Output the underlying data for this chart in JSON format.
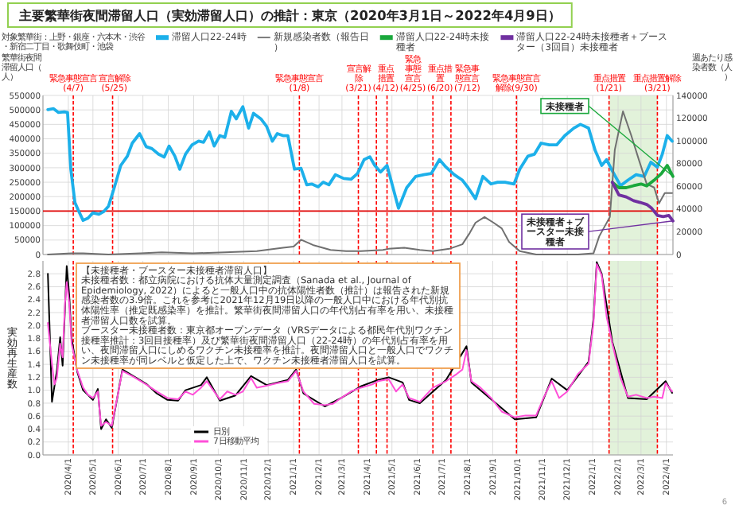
{
  "chart_data": [
    {
      "type": "line",
      "title": "主要繁華街夜間滞留人口（実効滞留人口）の推計：東京（2020年3月1日～2022年4月9日）",
      "ylabel": "繁華街夜間滞留人口（人）",
      "y2label": "週あたり感染者数（人）",
      "xlim": [
        "2020-03-01",
        "2022-04-09"
      ],
      "xticks": [
        {
          "value": "2020-04-01",
          "label": null
        },
        {
          "value": "2020-05-01",
          "label": null
        },
        {
          "value": "2020-06-01",
          "label": null
        },
        {
          "value": "2020-07-01",
          "label": null
        },
        {
          "value": "2020-08-01",
          "label": null
        },
        {
          "value": "2020-09-01",
          "label": null
        },
        {
          "value": "2020-10-01",
          "label": null
        },
        {
          "value": "2020-11-01",
          "label": null
        },
        {
          "value": "2020-12-01",
          "label": null
        },
        {
          "value": "2021-01-01",
          "label": null
        },
        {
          "value": "2021-02-01",
          "label": null
        },
        {
          "value": "2021-03-01",
          "label": null
        },
        {
          "value": "2021-04-01",
          "label": null
        },
        {
          "value": "2021-05-01",
          "label": null
        },
        {
          "value": "2021-06-01",
          "label": null
        },
        {
          "value": "2021-07-01",
          "label": null
        },
        {
          "value": "2021-08-01",
          "label": null
        },
        {
          "value": "2021-09-01",
          "label": null
        },
        {
          "value": "2021-10-01",
          "label": null
        },
        {
          "value": "2021-11-01",
          "label": null
        },
        {
          "value": "2021-12-01",
          "label": null
        },
        {
          "value": "2022-01-01",
          "label": null
        },
        {
          "value": "2022-02-01",
          "label": null
        },
        {
          "value": "2022-03-01",
          "label": null
        },
        {
          "value": "2022-04-01",
          "label": null
        }
      ],
      "ylim": [
        0,
        550000
      ],
      "yticks": [
        0,
        50000,
        100000,
        150000,
        200000,
        250000,
        300000,
        350000,
        400000,
        450000,
        500000,
        550000
      ],
      "y2lim": [
        0,
        140000
      ],
      "y2ticks": [
        0,
        20000,
        40000,
        60000,
        80000,
        100000,
        120000,
        140000
      ],
      "grid": true,
      "legend": "top",
      "tick_labels": "y",
      "series": [
        {
          "name": "滞留人口22-24時",
          "color": "#1cb0ea",
          "x": [
            "2020-03-07",
            "2020-03-14",
            "2020-03-20",
            "2020-03-27",
            "2020-03-31",
            "2020-04-04",
            "2020-04-09",
            "2020-04-13",
            "2020-04-19",
            "2020-04-25",
            "2020-05-01",
            "2020-05-08",
            "2020-05-14",
            "2020-05-20",
            "2020-05-27",
            "2020-06-04",
            "2020-06-12",
            "2020-06-18",
            "2020-06-27",
            "2020-07-05",
            "2020-07-12",
            "2020-07-20",
            "2020-07-27",
            "2020-08-02",
            "2020-08-09",
            "2020-08-15",
            "2020-08-22",
            "2020-08-30",
            "2020-09-07",
            "2020-09-13",
            "2020-09-20",
            "2020-09-26",
            "2020-10-03",
            "2020-10-09",
            "2020-10-17",
            "2020-10-23",
            "2020-10-31",
            "2020-11-07",
            "2020-11-13",
            "2020-11-22",
            "2020-11-29",
            "2020-12-06",
            "2020-12-12",
            "2020-12-19",
            "2020-12-25",
            "2021-01-02",
            "2021-01-10",
            "2021-01-17",
            "2021-01-23",
            "2021-01-31",
            "2021-02-06",
            "2021-02-13",
            "2021-02-21",
            "2021-03-03",
            "2021-03-12",
            "2021-03-20",
            "2021-03-28",
            "2021-04-04",
            "2021-04-10",
            "2021-04-17",
            "2021-04-25",
            "2021-05-09",
            "2021-05-19",
            "2021-05-30",
            "2021-06-09",
            "2021-06-18",
            "2021-06-28",
            "2021-07-06",
            "2021-07-16",
            "2021-07-26",
            "2021-08-02",
            "2021-08-11",
            "2021-08-20",
            "2021-08-30",
            "2021-09-07",
            "2021-09-16",
            "2021-09-27",
            "2021-10-04",
            "2021-10-14",
            "2021-10-22",
            "2021-10-30",
            "2021-11-09",
            "2021-11-18",
            "2021-11-28",
            "2021-12-09",
            "2021-12-17",
            "2021-12-27",
            "2022-01-04",
            "2022-01-12",
            "2022-01-18",
            "2022-01-25",
            "2022-02-04",
            "2022-02-13",
            "2022-02-23",
            "2022-03-05",
            "2022-03-13",
            "2022-03-21",
            "2022-03-27",
            "2022-04-02",
            "2022-04-08"
          ],
          "values": [
            501000,
            504000,
            491000,
            493000,
            491000,
            295000,
            180000,
            154000,
            118000,
            126000,
            144000,
            139000,
            148000,
            167000,
            231000,
            308000,
            340000,
            385000,
            418000,
            373000,
            366000,
            347000,
            337000,
            375000,
            340000,
            295000,
            347000,
            379000,
            392000,
            388000,
            424000,
            375000,
            411000,
            405000,
            495000,
            469000,
            511000,
            437000,
            488000,
            469000,
            443000,
            392000,
            418000,
            411000,
            411000,
            295000,
            298000,
            241000,
            244000,
            234000,
            250000,
            241000,
            276000,
            263000,
            260000,
            280000,
            328000,
            338000,
            308000,
            285000,
            308000,
            160000,
            231000,
            270000,
            276000,
            280000,
            328000,
            302000,
            276000,
            257000,
            231000,
            193000,
            270000,
            244000,
            250000,
            250000,
            244000,
            295000,
            340000,
            347000,
            385000,
            379000,
            379000,
            411000,
            437000,
            450000,
            437000,
            360000,
            308000,
            328000,
            289000,
            238000,
            257000,
            276000,
            270000,
            319000,
            302000,
            347000,
            411000,
            392000
          ]
        },
        {
          "name": "新規感染者数（報告日）",
          "color": "#707070",
          "axis": "y2",
          "x": [
            "2020-03-07",
            "2020-04-05",
            "2020-04-19",
            "2020-05-20",
            "2020-06-28",
            "2020-07-24",
            "2020-08-31",
            "2020-10-09",
            "2020-11-17",
            "2020-12-19",
            "2021-01-01",
            "2021-01-10",
            "2021-01-26",
            "2021-02-15",
            "2021-03-06",
            "2021-03-24",
            "2021-04-20",
            "2021-04-27",
            "2021-05-16",
            "2021-06-04",
            "2021-06-20",
            "2021-07-10",
            "2021-07-26",
            "2021-08-04",
            "2021-08-11",
            "2021-08-22",
            "2021-09-02",
            "2021-09-12",
            "2021-09-21",
            "2021-10-04",
            "2021-10-24",
            "2021-11-18",
            "2021-12-14",
            "2022-01-02",
            "2022-01-09",
            "2022-01-22",
            "2022-01-28",
            "2022-02-07",
            "2022-02-17",
            "2022-02-27",
            "2022-03-08",
            "2022-03-17",
            "2022-03-23",
            "2022-03-30",
            "2022-04-08"
          ],
          "values": [
            0,
            1000,
            1000,
            0,
            1000,
            2000,
            1000,
            2000,
            3000,
            6000,
            7000,
            13000,
            8000,
            4000,
            3000,
            3000,
            4000,
            5000,
            6000,
            4000,
            3000,
            5000,
            9000,
            19000,
            28000,
            33000,
            28000,
            23000,
            11000,
            3000,
            0,
            0,
            0,
            1000,
            16000,
            33000,
            92000,
            126000,
            105000,
            82000,
            62000,
            59000,
            45000,
            54000,
            54000
          ]
        },
        {
          "name": "滞留人口22-24時未接種者",
          "color": "#1aa83c",
          "x": [
            "2022-01-25",
            "2022-02-02",
            "2022-02-11",
            "2022-02-20",
            "2022-03-01",
            "2022-03-08",
            "2022-03-17",
            "2022-03-26",
            "2022-04-02",
            "2022-04-09"
          ],
          "values": [
            250000,
            231000,
            231000,
            238000,
            244000,
            237000,
            257000,
            280000,
            308000,
            270000
          ]
        },
        {
          "name": "滞留人口22-24時未接種者＋ブースター（3回目）未接種者",
          "color": "#7030a0",
          "x": [
            "2022-01-25",
            "2022-02-02",
            "2022-02-11",
            "2022-02-20",
            "2022-02-28",
            "2022-03-08",
            "2022-03-14",
            "2022-03-21",
            "2022-03-28",
            "2022-04-04",
            "2022-04-09"
          ],
          "values": [
            250000,
            206000,
            199000,
            186000,
            180000,
            173000,
            160000,
            135000,
            131000,
            135000,
            116000
          ]
        }
      ],
      "ref_lines": [
        {
          "axis": "y",
          "value": 150000,
          "color": "#e00000",
          "line_style": "solid"
        },
        {
          "axis": "x",
          "value": "2020-04-07",
          "label": "緊急事態宣言(4/7)",
          "color": "#ff0000",
          "line_style": "dashed"
        },
        {
          "axis": "x",
          "value": "2020-05-25",
          "label": "宣言解除(5/25)",
          "color": "#ff0000",
          "line_style": "dashed"
        },
        {
          "axis": "x",
          "value": "2021-01-08",
          "label": "緊急事態宣言(1/8)",
          "color": "#ff0000",
          "line_style": "dashed"
        },
        {
          "axis": "x",
          "value": "2021-03-21",
          "label": "宣言解除(3/21)",
          "color": "#ff0000",
          "line_style": "dashed"
        },
        {
          "axis": "x",
          "value": "2021-04-12",
          "label": "重点措置(4/12)",
          "color": "#ff0000",
          "line_style": "dashed"
        },
        {
          "axis": "x",
          "value": "2021-04-25",
          "label": "緊急事態宣言(4/25)",
          "color": "#ff0000",
          "line_style": "dashed"
        },
        {
          "axis": "x",
          "value": "2021-06-20",
          "label": "重点措置(6/20)",
          "color": "#ff0000",
          "line_style": "dashed"
        },
        {
          "axis": "x",
          "value": "2021-07-12",
          "label": "緊急事態宣言(7/12)",
          "color": "#ff0000",
          "line_style": "dashed"
        },
        {
          "axis": "x",
          "value": "2021-09-30",
          "label": "緊急事態宣言解除(9/30)",
          "color": "#ff0000",
          "line_style": "dashed"
        },
        {
          "axis": "x",
          "value": "2022-01-21",
          "label": "重点措置(1/21)",
          "color": "#ff0000",
          "line_style": "dashed"
        },
        {
          "axis": "x",
          "value": "2022-03-21",
          "label": "重点措置解除(3/21)",
          "color": "#ff0000",
          "line_style": "dashed"
        }
      ],
      "bands": [
        {
          "axis": "x",
          "from": "2022-01-21",
          "to": "2022-03-21",
          "color": "#e2f2da"
        }
      ],
      "annotations": [
        "対象繁華街：上野・銀座・六本木・渋谷・新宿二丁目・歌舞伎町・池袋",
        {
          "text": "未接種者",
          "x": "2022-04-09",
          "y": 270000
        },
        {
          "text": "未接種者＋ブースター未接種者",
          "x": "2022-04-09",
          "y": 116000
        },
        "6"
      ]
    },
    {
      "type": "line",
      "ylabel": "実効再生産数",
      "xlim": [
        "2020-03-01",
        "2022-04-09"
      ],
      "xticks": [
        {
          "value": "2020-04-01",
          "label": "2020/4/1"
        },
        {
          "value": "2020-05-01",
          "label": "2020/5/1"
        },
        {
          "value": "2020-06-01",
          "label": "2020/6/1"
        },
        {
          "value": "2020-07-01",
          "label": "2020/7/1"
        },
        {
          "value": "2020-08-01",
          "label": "2020/8/1"
        },
        {
          "value": "2020-09-01",
          "label": "2020/9/1"
        },
        {
          "value": "2020-10-01",
          "label": "2020/10/1"
        },
        {
          "value": "2020-11-01",
          "label": "2020/11/1"
        },
        {
          "value": "2020-12-01",
          "label": "2020/12/1"
        },
        {
          "value": "2021-01-01",
          "label": "2021/1/1"
        },
        {
          "value": "2021-02-01",
          "label": "2021/2/1"
        },
        {
          "value": "2021-03-01",
          "label": "2021/3/1"
        },
        {
          "value": "2021-04-01",
          "label": "2021/4/1"
        },
        {
          "value": "2021-05-01",
          "label": "2021/5/1"
        },
        {
          "value": "2021-06-01",
          "label": "2021/6/1"
        },
        {
          "value": "2021-07-01",
          "label": "2021/7/1"
        },
        {
          "value": "2021-08-01",
          "label": "2021/8/1"
        },
        {
          "value": "2021-09-01",
          "label": "2021/9/1"
        },
        {
          "value": "2021-10-01",
          "label": "2021/10/1"
        },
        {
          "value": "2021-11-01",
          "label": "2021/11/1"
        },
        {
          "value": "2021-12-01",
          "label": "2021/12/1"
        },
        {
          "value": "2022-01-01",
          "label": "2022/1/1"
        },
        {
          "value": "2022-02-01",
          "label": "2022/2/1"
        },
        {
          "value": "2022-03-01",
          "label": "2022/3/1"
        },
        {
          "value": "2022-04-01",
          "label": "2022/4/1"
        }
      ],
      "ylim": [
        0,
        3
      ],
      "yticks": [
        {
          "value": 0,
          "label": "0.0"
        },
        {
          "value": 0.2,
          "label": "0.2"
        },
        {
          "value": 0.4,
          "label": "0.4"
        },
        {
          "value": 0.6,
          "label": "0.6"
        },
        {
          "value": 0.8,
          "label": "0.8"
        },
        {
          "value": 1,
          "label": "1.0"
        },
        {
          "value": 1.2,
          "label": "1.2"
        },
        {
          "value": 1.4,
          "label": "1.4"
        },
        {
          "value": 1.6,
          "label": "1.6"
        },
        {
          "value": 1.8,
          "label": "1.8"
        },
        {
          "value": 2,
          "label": "2.0"
        },
        {
          "value": 2.2,
          "label": "2.2"
        },
        {
          "value": 2.4,
          "label": "2.4"
        },
        {
          "value": 2.6,
          "label": "2.6"
        },
        {
          "value": 2.8,
          "label": "2.8"
        }
      ],
      "grid": true,
      "legend": "bottom",
      "series": [
        {
          "name": "日別",
          "color": "#000000",
          "x": [
            "2020-03-07",
            "2020-03-12",
            "2020-03-18",
            "2020-03-22",
            "2020-03-25",
            "2020-03-30",
            "2020-04-02",
            "2020-04-05",
            "2020-04-12",
            "2020-04-19",
            "2020-05-01",
            "2020-05-07",
            "2020-05-11",
            "2020-05-17",
            "2020-05-24",
            "2020-06-06",
            "2020-07-05",
            "2020-07-18",
            "2020-07-31",
            "2020-08-13",
            "2020-08-22",
            "2020-09-10",
            "2020-09-17",
            "2020-10-03",
            "2020-10-22",
            "2020-11-10",
            "2020-11-29",
            "2020-12-25",
            "2021-01-04",
            "2021-01-13",
            "2021-02-08",
            "2021-02-28",
            "2021-03-24",
            "2021-04-14",
            "2021-04-27",
            "2021-05-14",
            "2021-05-22",
            "2021-06-04",
            "2021-07-06",
            "2021-07-31",
            "2021-08-06",
            "2021-09-28",
            "2021-10-24",
            "2021-11-12",
            "2021-12-01",
            "2021-12-27",
            "2022-01-02",
            "2022-01-06",
            "2022-01-12",
            "2022-01-25",
            "2022-02-13",
            "2022-03-08",
            "2022-03-31",
            "2022-04-08"
          ],
          "values": [
            2.8,
            0.82,
            1.3,
            1.82,
            1.38,
            2.92,
            2.48,
            1.8,
            1.28,
            1.0,
            0.85,
            1.02,
            0.4,
            0.55,
            0.42,
            1.32,
            1.1,
            0.95,
            0.85,
            0.84,
            1.0,
            1.08,
            1.2,
            0.84,
            0.92,
            1.22,
            1.08,
            1.16,
            1.32,
            0.95,
            0.75,
            0.88,
            1.06,
            1.16,
            1.2,
            1.12,
            0.85,
            0.8,
            1.16,
            1.68,
            1.12,
            0.55,
            0.58,
            1.18,
            1.0,
            1.44,
            2.1,
            2.98,
            2.8,
            1.75,
            0.88,
            0.86,
            1.14,
            0.96
          ]
        },
        {
          "name": "7日移動平均",
          "color": "#ff4fd8",
          "x": [
            "2020-03-07",
            "2020-03-12",
            "2020-03-15",
            "2020-03-18",
            "2020-03-22",
            "2020-03-25",
            "2020-03-28",
            "2020-03-30",
            "2020-04-02",
            "2020-04-05",
            "2020-04-12",
            "2020-04-19",
            "2020-04-25",
            "2020-05-01",
            "2020-05-07",
            "2020-05-11",
            "2020-05-17",
            "2020-05-24",
            "2020-06-06",
            "2020-06-18",
            "2020-07-05",
            "2020-07-18",
            "2020-07-31",
            "2020-08-13",
            "2020-08-22",
            "2020-08-31",
            "2020-09-10",
            "2020-09-17",
            "2020-09-26",
            "2020-10-03",
            "2020-10-12",
            "2020-10-22",
            "2020-10-31",
            "2020-11-10",
            "2020-11-17",
            "2020-11-29",
            "2020-12-12",
            "2020-12-25",
            "2021-01-04",
            "2021-01-13",
            "2021-01-26",
            "2021-02-08",
            "2021-02-18",
            "2021-02-28",
            "2021-03-12",
            "2021-03-24",
            "2021-04-07",
            "2021-04-14",
            "2021-04-27",
            "2021-05-06",
            "2021-05-14",
            "2021-05-22",
            "2021-06-04",
            "2021-06-20",
            "2021-07-06",
            "2021-07-19",
            "2021-07-26",
            "2021-07-31",
            "2021-08-06",
            "2021-08-17",
            "2021-08-30",
            "2021-09-12",
            "2021-09-28",
            "2021-10-11",
            "2021-10-24",
            "2021-11-02",
            "2021-11-12",
            "2021-11-21",
            "2021-12-01",
            "2021-12-14",
            "2021-12-27",
            "2022-01-02",
            "2022-01-06",
            "2022-01-12",
            "2022-01-18",
            "2022-01-25",
            "2022-02-04",
            "2022-02-13",
            "2022-02-23",
            "2022-03-08",
            "2022-03-17",
            "2022-03-27",
            "2022-03-31",
            "2022-04-08"
          ],
          "values": [
            2.04,
            1.41,
            1.09,
            1.19,
            1.72,
            1.51,
            2.36,
            2.67,
            2.36,
            1.72,
            1.3,
            1.04,
            0.93,
            0.88,
            0.98,
            0.45,
            0.51,
            0.45,
            1.3,
            1.22,
            1.09,
            0.98,
            0.88,
            0.86,
            0.98,
            0.93,
            1.04,
            1.14,
            0.98,
            0.86,
            0.98,
            0.93,
            0.98,
            1.19,
            1.04,
            1.07,
            1.11,
            1.14,
            1.3,
            0.98,
            0.79,
            0.77,
            0.79,
            0.88,
            0.98,
            1.04,
            1.09,
            1.14,
            1.17,
            0.98,
            1.09,
            0.88,
            0.82,
            1.04,
            1.14,
            1.25,
            1.32,
            1.62,
            1.14,
            1.04,
            0.88,
            0.67,
            0.58,
            0.61,
            0.61,
            0.88,
            1.14,
            0.88,
            0.98,
            1.25,
            1.41,
            2.04,
            2.95,
            2.78,
            2.14,
            1.72,
            1.19,
            0.9,
            0.93,
            0.88,
            0.9,
            0.88,
            1.11,
            0.98
          ]
        }
      ],
      "ref_lines": [
        {
          "axis": "x",
          "value": "2020-04-07",
          "color": "#ff0000",
          "line_style": "dashed"
        },
        {
          "axis": "x",
          "value": "2020-05-25",
          "color": "#ff0000",
          "line_style": "dashed"
        },
        {
          "axis": "x",
          "value": "2021-01-08",
          "color": "#ff0000",
          "line_style": "dashed"
        },
        {
          "axis": "x",
          "value": "2021-03-21",
          "color": "#ff0000",
          "line_style": "dashed"
        },
        {
          "axis": "x",
          "value": "2021-04-12",
          "color": "#ff0000",
          "line_style": "dashed"
        },
        {
          "axis": "x",
          "value": "2021-04-25",
          "color": "#ff0000",
          "line_style": "dashed"
        },
        {
          "axis": "x",
          "value": "2021-06-20",
          "color": "#ff0000",
          "line_style": "dashed"
        },
        {
          "axis": "x",
          "value": "2021-07-12",
          "color": "#ff0000",
          "line_style": "dashed"
        },
        {
          "axis": "x",
          "value": "2021-09-30",
          "color": "#ff0000",
          "line_style": "dashed"
        },
        {
          "axis": "x",
          "value": "2022-01-21",
          "color": "#ff0000",
          "line_style": "dashed"
        },
        {
          "axis": "x",
          "value": "2022-03-21",
          "color": "#ff0000",
          "line_style": "dashed"
        }
      ],
      "bands": [
        {
          "axis": "x",
          "from": "2022-01-21",
          "to": "2022-03-21",
          "color": "#e2f2da"
        }
      ],
      "annotations": [
        "【未接種者・ブースター未接種者滞留人口】",
        "未接種者数：都立病院における抗体大量測定調査（Sanada et al., Journal of Epidemiology, 2022）によると一般人口中の抗体陽性者数（推計）は報告された新規感染者数の3.9倍。これを参考に2021年12月19日以降の一般人口中における年代別抗体陽性率（推定既感染率）を推計。繁華街夜間滞留人口の年代別占有率を用い、未接種者滞留人口数を試算。",
        "ブースター未接種者数：東京都オープンデータ（VRSデータによる都民年代別ワクチン接種率推計：3回目接種率）及び繁華街夜間滞留人口（22-24時）の年代別占有率を用い、夜間滞留人口にしめるワクチン未接種率を推計。夜間滞留人口と一般人口でワクチン未接種率が同レベルと仮定した上で、ワクチン未接種者滞留人口を試算。"
      ]
    }
  ]
}
